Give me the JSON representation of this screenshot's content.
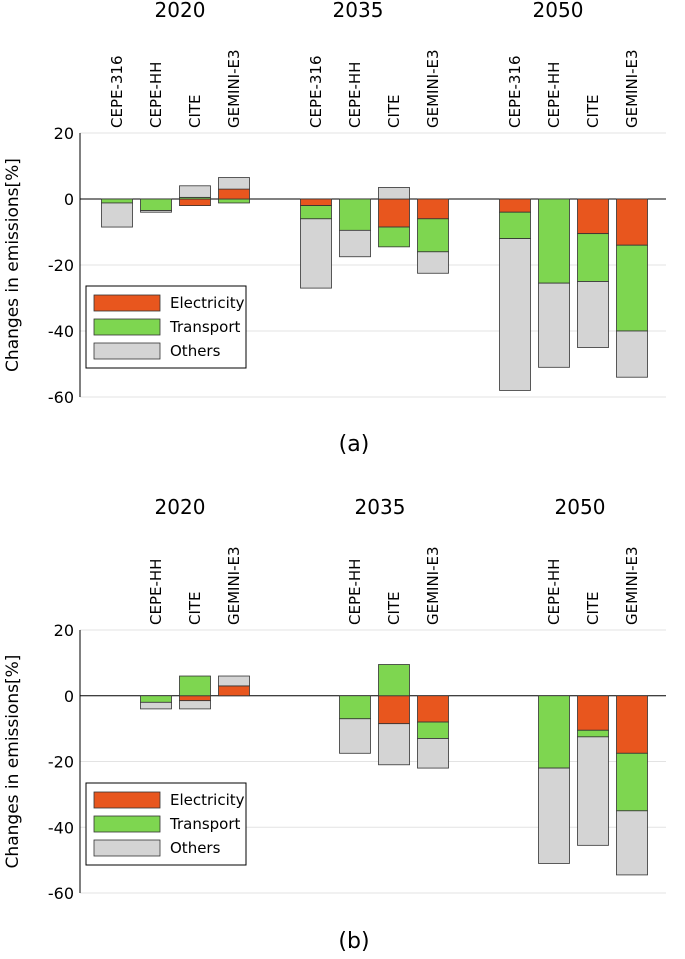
{
  "colors": {
    "Electricity": "#e8561e",
    "Transport": "#7ed650",
    "Others": "#d4d4d4",
    "grid": "#e3e3e3",
    "bar_edge": "#333333"
  },
  "chart_data": [
    {
      "type": "bar",
      "stacking": "stacked-diverging",
      "panel_label": "(a)",
      "ylabel": "Changes in emissions[%]",
      "ylim": [
        -60,
        20
      ],
      "yticks": [
        -60,
        -40,
        -20,
        0,
        20
      ],
      "grid": true,
      "legend": {
        "placement": "bottom-left",
        "entries": [
          "Electricity",
          "Transport",
          "Others"
        ]
      },
      "groups": [
        {
          "year": "2020",
          "bars": [
            {
              "model": "CEPE-316",
              "segments": [
                {
                  "s": "Transport",
                  "from": 0,
                  "to": -1.2
                },
                {
                  "s": "Others",
                  "from": -1.2,
                  "to": -8.5
                }
              ]
            },
            {
              "model": "CEPE-HH",
              "segments": [
                {
                  "s": "Transport",
                  "from": 0,
                  "to": -3.5
                },
                {
                  "s": "Others",
                  "from": -3.5,
                  "to": -4
                }
              ]
            },
            {
              "model": "CITE",
              "segments": [
                {
                  "s": "Electricity",
                  "from": 0,
                  "to": -2
                },
                {
                  "s": "Transport",
                  "from": 0,
                  "to": 0.5
                },
                {
                  "s": "Others",
                  "from": 0.5,
                  "to": 4
                }
              ]
            },
            {
              "model": "GEMINI-E3",
              "segments": [
                {
                  "s": "Transport",
                  "from": 0,
                  "to": -1.2
                },
                {
                  "s": "Electricity",
                  "from": 0,
                  "to": 3
                },
                {
                  "s": "Others",
                  "from": 3,
                  "to": 6.5
                }
              ]
            }
          ]
        },
        {
          "year": "2035",
          "bars": [
            {
              "model": "CEPE-316",
              "segments": [
                {
                  "s": "Electricity",
                  "from": 0,
                  "to": -2
                },
                {
                  "s": "Transport",
                  "from": -2,
                  "to": -6
                },
                {
                  "s": "Others",
                  "from": -6,
                  "to": -27
                }
              ]
            },
            {
              "model": "CEPE-HH",
              "segments": [
                {
                  "s": "Transport",
                  "from": 0,
                  "to": -9.5
                },
                {
                  "s": "Others",
                  "from": -9.5,
                  "to": -17.5
                }
              ]
            },
            {
              "model": "CITE",
              "segments": [
                {
                  "s": "Electricity",
                  "from": 0,
                  "to": -8.5
                },
                {
                  "s": "Transport",
                  "from": -8.5,
                  "to": -14.5
                },
                {
                  "s": "Others",
                  "from": 0,
                  "to": 3.5
                }
              ]
            },
            {
              "model": "GEMINI-E3",
              "segments": [
                {
                  "s": "Electricity",
                  "from": 0,
                  "to": -6
                },
                {
                  "s": "Transport",
                  "from": -6,
                  "to": -16
                },
                {
                  "s": "Others",
                  "from": -16,
                  "to": -22.5
                }
              ]
            }
          ]
        },
        {
          "year": "2050",
          "bars": [
            {
              "model": "CEPE-316",
              "segments": [
                {
                  "s": "Electricity",
                  "from": 0,
                  "to": -4
                },
                {
                  "s": "Transport",
                  "from": -4,
                  "to": -12
                },
                {
                  "s": "Others",
                  "from": -12,
                  "to": -58
                }
              ]
            },
            {
              "model": "CEPE-HH",
              "segments": [
                {
                  "s": "Transport",
                  "from": 0,
                  "to": -25.5
                },
                {
                  "s": "Others",
                  "from": -25.5,
                  "to": -51
                }
              ]
            },
            {
              "model": "CITE",
              "segments": [
                {
                  "s": "Electricity",
                  "from": 0,
                  "to": -10.5
                },
                {
                  "s": "Transport",
                  "from": -10.5,
                  "to": -25
                },
                {
                  "s": "Others",
                  "from": -25,
                  "to": -45
                }
              ]
            },
            {
              "model": "GEMINI-E3",
              "segments": [
                {
                  "s": "Electricity",
                  "from": 0,
                  "to": -14
                },
                {
                  "s": "Transport",
                  "from": -14,
                  "to": -40
                },
                {
                  "s": "Others",
                  "from": -40,
                  "to": -54
                }
              ]
            }
          ]
        }
      ]
    },
    {
      "type": "bar",
      "stacking": "stacked-diverging",
      "panel_label": "(b)",
      "ylabel": "Changes in emissions[%]",
      "ylim": [
        -60,
        20
      ],
      "yticks": [
        -60,
        -40,
        -20,
        0,
        20
      ],
      "grid": true,
      "legend": {
        "placement": "bottom-left",
        "entries": [
          "Electricity",
          "Transport",
          "Others"
        ]
      },
      "groups": [
        {
          "year": "2020",
          "bars": [
            {
              "model": "CEPE-HH",
              "segments": [
                {
                  "s": "Transport",
                  "from": 0,
                  "to": -2
                },
                {
                  "s": "Others",
                  "from": -2,
                  "to": -4
                }
              ]
            },
            {
              "model": "CITE",
              "segments": [
                {
                  "s": "Electricity",
                  "from": 0,
                  "to": -1.5
                },
                {
                  "s": "Others",
                  "from": -1.5,
                  "to": -4
                },
                {
                  "s": "Transport",
                  "from": 0,
                  "to": 6
                }
              ]
            },
            {
              "model": "GEMINI-E3",
              "segments": [
                {
                  "s": "Electricity",
                  "from": 0,
                  "to": 3
                },
                {
                  "s": "Others",
                  "from": 3,
                  "to": 6
                }
              ]
            }
          ]
        },
        {
          "year": "2035",
          "bars": [
            {
              "model": "CEPE-HH",
              "segments": [
                {
                  "s": "Transport",
                  "from": 0,
                  "to": -7
                },
                {
                  "s": "Others",
                  "from": -7,
                  "to": -17.5
                }
              ]
            },
            {
              "model": "CITE",
              "segments": [
                {
                  "s": "Electricity",
                  "from": 0,
                  "to": -8.5
                },
                {
                  "s": "Others",
                  "from": -8.5,
                  "to": -21
                },
                {
                  "s": "Transport",
                  "from": 0,
                  "to": 9.5
                }
              ]
            },
            {
              "model": "GEMINI-E3",
              "segments": [
                {
                  "s": "Electricity",
                  "from": 0,
                  "to": -8
                },
                {
                  "s": "Transport",
                  "from": -8,
                  "to": -13
                },
                {
                  "s": "Others",
                  "from": -13,
                  "to": -22
                }
              ]
            }
          ]
        },
        {
          "year": "2050",
          "bars": [
            {
              "model": "CEPE-HH",
              "segments": [
                {
                  "s": "Transport",
                  "from": 0,
                  "to": -22
                },
                {
                  "s": "Others",
                  "from": -22,
                  "to": -51
                }
              ]
            },
            {
              "model": "CITE",
              "segments": [
                {
                  "s": "Electricity",
                  "from": 0,
                  "to": -10.5
                },
                {
                  "s": "Transport",
                  "from": -10.5,
                  "to": -12.5
                },
                {
                  "s": "Others",
                  "from": -12.5,
                  "to": -45.5
                }
              ]
            },
            {
              "model": "GEMINI-E3",
              "segments": [
                {
                  "s": "Electricity",
                  "from": 0,
                  "to": -17.5
                },
                {
                  "s": "Transport",
                  "from": -17.5,
                  "to": -35
                },
                {
                  "s": "Others",
                  "from": -35,
                  "to": -54.5
                }
              ]
            }
          ]
        }
      ]
    }
  ]
}
